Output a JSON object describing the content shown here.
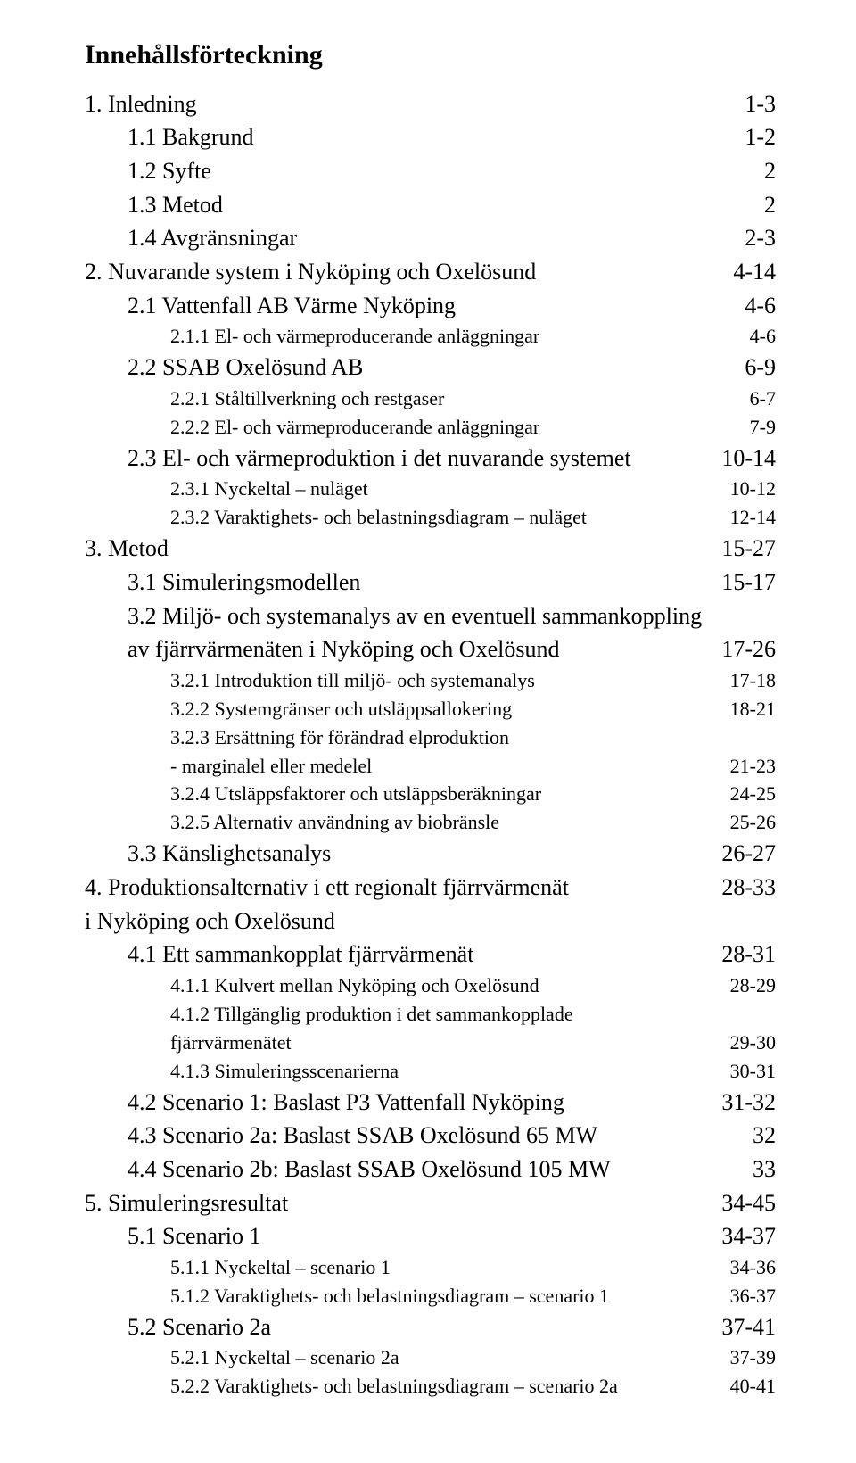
{
  "title": "Innehållsförteckning",
  "font": {
    "family": "Times New Roman",
    "title_size_pt": 22,
    "lvl0_size_pt": 19,
    "lvl1_size_pt": 19,
    "lvl2_size_pt": 16
  },
  "colors": {
    "text": "#000000",
    "background": "#ffffff"
  },
  "entries": [
    {
      "type": "row",
      "level": 0,
      "label": "1. Inledning",
      "page": "1-3"
    },
    {
      "type": "row",
      "level": 1,
      "label": "1.1 Bakgrund",
      "page": "1-2"
    },
    {
      "type": "row",
      "level": 1,
      "label": "1.2 Syfte",
      "page": "2"
    },
    {
      "type": "row",
      "level": 1,
      "label": "1.3 Metod",
      "page": "2"
    },
    {
      "type": "row",
      "level": 1,
      "label": "1.4 Avgränsningar",
      "page": "2-3"
    },
    {
      "type": "row",
      "level": 0,
      "label": "2. Nuvarande system i Nyköping och Oxelösund",
      "page": "4-14"
    },
    {
      "type": "row",
      "level": 1,
      "label": "2.1 Vattenfall AB Värme Nyköping",
      "page": "4-6"
    },
    {
      "type": "row",
      "level": 2,
      "label": "2.1.1 El- och värmeproducerande anläggningar",
      "page": "4-6"
    },
    {
      "type": "row",
      "level": 1,
      "label": "2.2 SSAB Oxelösund AB",
      "page": "6-9"
    },
    {
      "type": "row",
      "level": 2,
      "label": "2.2.1 Ståltillverkning och restgaser",
      "page": "6-7"
    },
    {
      "type": "row",
      "level": 2,
      "label": "2.2.2 El- och värmeproducerande anläggningar",
      "page": "7-9"
    },
    {
      "type": "row",
      "level": 1,
      "label": "2.3 El- och värmeproduktion i det nuvarande systemet",
      "page": "10-14"
    },
    {
      "type": "row",
      "level": 2,
      "label": "2.3.1 Nyckeltal – nuläget",
      "page": "10-12"
    },
    {
      "type": "row",
      "level": 2,
      "label": "2.3.2 Varaktighets- och belastningsdiagram – nuläget",
      "page": "12-14"
    },
    {
      "type": "row",
      "level": 0,
      "label": "3. Metod",
      "page": "15-27"
    },
    {
      "type": "row",
      "level": 1,
      "label": "3.1 Simuleringsmodellen",
      "page": "15-17"
    },
    {
      "type": "cont",
      "level": 1,
      "label": "3.2 Miljö- och systemanalys av en eventuell sammankoppling"
    },
    {
      "type": "row",
      "level": 1,
      "label": "av fjärrvärmenäten i Nyköping och Oxelösund",
      "page": "17-26"
    },
    {
      "type": "row",
      "level": 2,
      "label": "3.2.1 Introduktion till miljö- och systemanalys",
      "page": "17-18"
    },
    {
      "type": "row",
      "level": 2,
      "label": "3.2.2 Systemgränser och utsläppsallokering",
      "page": "18-21"
    },
    {
      "type": "cont",
      "level": 2,
      "label": "3.2.3 Ersättning för förändrad elproduktion"
    },
    {
      "type": "row",
      "level": 2,
      "label": "- marginalel eller medelel",
      "page": "21-23"
    },
    {
      "type": "row",
      "level": 2,
      "label": "3.2.4 Utsläppsfaktorer och utsläppsberäkningar",
      "page": "24-25"
    },
    {
      "type": "row",
      "level": 2,
      "label": "3.2.5 Alternativ användning av biobränsle",
      "page": "25-26"
    },
    {
      "type": "row",
      "level": 1,
      "label": "3.3 Känslighetsanalys",
      "page": "26-27"
    },
    {
      "type": "row",
      "level": 0,
      "label": "4. Produktionsalternativ i ett regionalt fjärrvärmenät",
      "page": "28-33"
    },
    {
      "type": "leftonly",
      "level": 0,
      "label": "i Nyköping och Oxelösund"
    },
    {
      "type": "row",
      "level": 1,
      "label": "4.1 Ett sammankopplat fjärrvärmenät",
      "page": "28-31"
    },
    {
      "type": "row",
      "level": 2,
      "label": "4.1.1 Kulvert mellan Nyköping och Oxelösund",
      "page": "28-29"
    },
    {
      "type": "cont",
      "level": 2,
      "label": "4.1.2 Tillgänglig produktion i det sammankopplade"
    },
    {
      "type": "row",
      "level": 2,
      "label": "fjärrvärmenätet",
      "page": "29-30"
    },
    {
      "type": "row",
      "level": 2,
      "label": "4.1.3 Simuleringsscenarierna",
      "page": "30-31"
    },
    {
      "type": "row",
      "level": 1,
      "label": "4.2 Scenario 1: Baslast P3 Vattenfall Nyköping",
      "page": "31-32"
    },
    {
      "type": "row",
      "level": 1,
      "label": "4.3 Scenario 2a: Baslast SSAB Oxelösund 65 MW",
      "page": "32"
    },
    {
      "type": "row",
      "level": 1,
      "label": "4.4 Scenario 2b: Baslast SSAB Oxelösund 105 MW",
      "page": "33"
    },
    {
      "type": "row",
      "level": 0,
      "label": "5. Simuleringsresultat",
      "page": "34-45"
    },
    {
      "type": "row",
      "level": 1,
      "label": "5.1 Scenario 1",
      "page": "34-37"
    },
    {
      "type": "row",
      "level": 2,
      "label": "5.1.1 Nyckeltal – scenario 1",
      "page": "34-36"
    },
    {
      "type": "row",
      "level": 2,
      "label": "5.1.2 Varaktighets- och belastningsdiagram – scenario 1",
      "page": "36-37"
    },
    {
      "type": "row",
      "level": 1,
      "label": "5.2 Scenario 2a",
      "page": "37-41"
    },
    {
      "type": "row",
      "level": 2,
      "label": "5.2.1 Nyckeltal – scenario 2a",
      "page": "37-39"
    },
    {
      "type": "row",
      "level": 2,
      "label": "5.2.2 Varaktighets- och belastningsdiagram – scenario 2a",
      "page": "40-41"
    }
  ]
}
